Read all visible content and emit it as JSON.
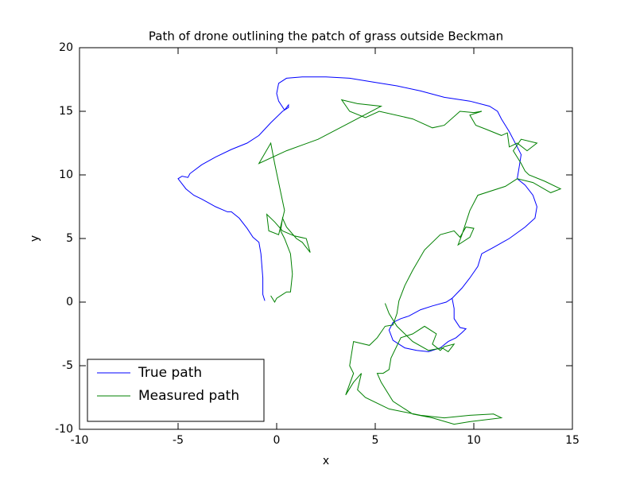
{
  "chart_data": {
    "type": "line",
    "title": "Path of drone outlining the patch of grass outside Beckman",
    "x_label": "x",
    "y_label": "y",
    "xlim": [
      -10,
      15
    ],
    "xticks": [
      -10,
      -5,
      0,
      5,
      10,
      15
    ],
    "ylim": [
      -10,
      20
    ],
    "yticks": [
      -10,
      -5,
      0,
      5,
      10,
      15,
      20
    ],
    "legend": "lower left",
    "series": [
      {
        "name": "True path",
        "color": "#0000ff",
        "x": [
          -0.6,
          -0.7,
          -0.7,
          -0.8,
          -0.9,
          -1.2,
          -1.5,
          -1.9,
          -2.3,
          -2.5,
          -3.1,
          -3.8,
          -4.2,
          -4.6,
          -5.0,
          -4.8,
          -4.5,
          -4.4,
          -3.8,
          -3.1,
          -2.3,
          -1.5,
          -0.9,
          -0.3,
          0.3,
          0.6,
          0.6,
          0.4,
          0.1,
          0.0,
          0.1,
          0.5,
          1.3,
          2.5,
          3.7,
          4.9,
          6.1,
          7.3,
          8.5,
          9.8,
          10.8,
          11.2,
          11.4,
          11.8,
          12.2,
          12.4,
          12.3,
          12.2,
          12.6,
          13.0,
          13.2,
          13.1,
          12.6,
          11.8,
          11.0,
          10.4,
          10.2,
          9.8,
          9.4,
          8.9,
          8.6,
          7.9,
          7.3,
          6.7,
          6.3,
          5.9,
          5.7,
          5.9,
          6.5,
          7.1,
          7.7,
          8.3,
          8.7,
          9.1,
          9.4,
          9.6,
          9.3,
          9.0,
          9.0,
          8.9
        ],
        "values": [
          0.1,
          0.6,
          1.9,
          3.8,
          4.7,
          5.1,
          5.8,
          6.6,
          7.1,
          7.1,
          7.5,
          8.1,
          8.4,
          8.9,
          9.7,
          9.9,
          9.8,
          10.1,
          10.8,
          11.4,
          12.0,
          12.5,
          13.1,
          14.1,
          15.0,
          15.3,
          15.5,
          15.1,
          15.8,
          16.4,
          17.2,
          17.6,
          17.7,
          17.7,
          17.6,
          17.3,
          17.0,
          16.6,
          16.1,
          15.8,
          15.4,
          15.0,
          14.4,
          13.4,
          12.2,
          11.6,
          10.6,
          9.7,
          9.2,
          8.4,
          7.5,
          6.6,
          5.9,
          5.0,
          4.3,
          3.8,
          2.8,
          1.9,
          1.1,
          0.3,
          0.0,
          -0.3,
          -0.6,
          -1.1,
          -1.3,
          -1.6,
          -2.2,
          -3.0,
          -3.6,
          -3.8,
          -3.9,
          -3.6,
          -3.1,
          -2.8,
          -2.4,
          -2.1,
          -2.0,
          -1.3,
          -0.5,
          0.3
        ]
      },
      {
        "name": "Measured path",
        "color": "#008000",
        "x": [
          -0.3,
          -0.1,
          0.0,
          0.3,
          0.5,
          0.7,
          0.8,
          0.7,
          0.4,
          0.2,
          0.3,
          0.5,
          1.0,
          1.3,
          1.7,
          1.5,
          0.9,
          0.3,
          -0.1,
          -0.5,
          -0.4,
          0.1,
          0.4,
          0.1,
          -0.1,
          -0.3,
          -0.9,
          0.5,
          2.1,
          3.7,
          5.3,
          4.1,
          3.3,
          3.7,
          4.5,
          5.2,
          6.9,
          7.9,
          8.5,
          9.3,
          10.0,
          10.4,
          9.8,
          10.1,
          10.6,
          11.4,
          11.7,
          11.8,
          12.2,
          12.7,
          13.2,
          12.4,
          12.0,
          12.4,
          12.6,
          12.8,
          13.6,
          14.4,
          13.9,
          13.0,
          12.2,
          11.6,
          10.2,
          9.8,
          9.4,
          9.2,
          9.8,
          10.0,
          9.6,
          9.3,
          9.0,
          8.3,
          7.5,
          6.9,
          6.5,
          6.2,
          6.1,
          5.9,
          5.5,
          5.1,
          4.7,
          3.9,
          3.7,
          3.9,
          3.5,
          3.9,
          4.3,
          4.1,
          4.5,
          5.7,
          7.3,
          8.5,
          9.8,
          11.0,
          11.4,
          9.8,
          9.0,
          7.9,
          6.9,
          5.9,
          5.3,
          5.1,
          5.4,
          5.7,
          5.8,
          6.3,
          6.9,
          7.5,
          8.1,
          7.9,
          8.3,
          8.5,
          9.0,
          8.7,
          8.4,
          7.7,
          6.9,
          6.1,
          5.7,
          5.5
        ],
        "values": [
          0.5,
          0.0,
          0.3,
          0.6,
          0.8,
          0.8,
          2.2,
          3.8,
          5.0,
          5.6,
          6.6,
          5.9,
          5.0,
          4.7,
          3.9,
          5.0,
          5.2,
          5.6,
          6.3,
          6.9,
          5.6,
          5.3,
          7.2,
          9.4,
          10.9,
          12.5,
          10.9,
          11.9,
          12.8,
          14.1,
          15.4,
          15.6,
          15.9,
          15.0,
          14.5,
          15.0,
          14.4,
          13.7,
          13.9,
          15.0,
          14.9,
          15.0,
          14.7,
          13.9,
          13.6,
          13.1,
          13.3,
          12.2,
          12.5,
          11.9,
          12.5,
          12.8,
          11.9,
          10.9,
          10.3,
          10.0,
          9.5,
          8.9,
          8.6,
          9.4,
          9.7,
          9.1,
          8.4,
          7.2,
          5.3,
          4.5,
          5.1,
          5.8,
          5.9,
          5.1,
          5.6,
          5.3,
          4.1,
          2.5,
          1.3,
          0.1,
          -0.9,
          -1.8,
          -1.9,
          -2.8,
          -3.4,
          -3.1,
          -5.0,
          -5.6,
          -7.3,
          -6.3,
          -5.6,
          -6.9,
          -7.5,
          -8.4,
          -8.9,
          -9.1,
          -8.9,
          -8.8,
          -9.1,
          -9.4,
          -9.6,
          -9.1,
          -8.8,
          -7.8,
          -6.3,
          -5.6,
          -5.6,
          -5.3,
          -4.4,
          -2.8,
          -2.5,
          -1.9,
          -2.5,
          -3.3,
          -3.8,
          -3.5,
          -3.3,
          -3.9,
          -3.6,
          -3.8,
          -3.1,
          -1.9,
          -0.9,
          -0.1
        ]
      }
    ]
  }
}
